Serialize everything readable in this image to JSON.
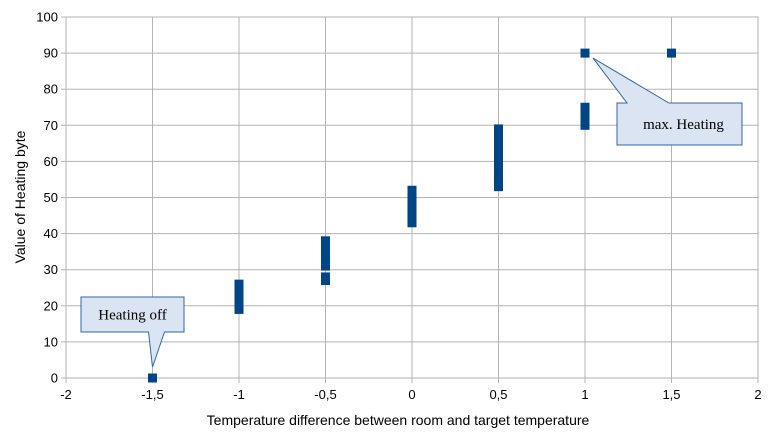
{
  "chart_data": {
    "type": "scatter",
    "xlabel": "Temperature difference between room and target temperature",
    "ylabel": "Value of Heating byte",
    "xlim": [
      -2,
      2
    ],
    "ylim": [
      0,
      100
    ],
    "xticks": [
      -2,
      -1.5,
      -1,
      -0.5,
      0,
      0.5,
      1,
      1.5,
      2
    ],
    "xtick_labels": [
      "-2",
      "-1,5",
      "-1",
      "-0,5",
      "0",
      "0,5",
      "1",
      "1,5",
      "2"
    ],
    "yticks": [
      0,
      10,
      20,
      30,
      40,
      50,
      60,
      70,
      80,
      90,
      100
    ],
    "ytick_labels": [
      "0",
      "10",
      "20",
      "30",
      "40",
      "50",
      "60",
      "70",
      "80",
      "90",
      "100"
    ],
    "grid": true,
    "legend": "none",
    "marker_color": "#004586",
    "callout_fill": "#dbe4f2",
    "callout_border": "#3465a4",
    "points": [
      {
        "x": -1.5,
        "y": 0
      },
      {
        "x": -1,
        "y": 19
      },
      {
        "x": -1,
        "y": 20
      },
      {
        "x": -1,
        "y": 21
      },
      {
        "x": -1,
        "y": 22
      },
      {
        "x": -1,
        "y": 23
      },
      {
        "x": -1,
        "y": 24
      },
      {
        "x": -1,
        "y": 25
      },
      {
        "x": -1,
        "y": 26
      },
      {
        "x": -0.5,
        "y": 27
      },
      {
        "x": -0.5,
        "y": 28
      },
      {
        "x": -0.5,
        "y": 31
      },
      {
        "x": -0.5,
        "y": 32
      },
      {
        "x": -0.5,
        "y": 33
      },
      {
        "x": -0.5,
        "y": 34
      },
      {
        "x": -0.5,
        "y": 35
      },
      {
        "x": -0.5,
        "y": 36
      },
      {
        "x": -0.5,
        "y": 37
      },
      {
        "x": -0.5,
        "y": 38
      },
      {
        "x": 0,
        "y": 43
      },
      {
        "x": 0,
        "y": 44
      },
      {
        "x": 0,
        "y": 45
      },
      {
        "x": 0,
        "y": 46
      },
      {
        "x": 0,
        "y": 47
      },
      {
        "x": 0,
        "y": 48
      },
      {
        "x": 0,
        "y": 49
      },
      {
        "x": 0,
        "y": 50
      },
      {
        "x": 0,
        "y": 51
      },
      {
        "x": 0,
        "y": 52
      },
      {
        "x": 0.5,
        "y": 53
      },
      {
        "x": 0.5,
        "y": 54
      },
      {
        "x": 0.5,
        "y": 55
      },
      {
        "x": 0.5,
        "y": 56
      },
      {
        "x": 0.5,
        "y": 57
      },
      {
        "x": 0.5,
        "y": 58
      },
      {
        "x": 0.5,
        "y": 59
      },
      {
        "x": 0.5,
        "y": 60
      },
      {
        "x": 0.5,
        "y": 61
      },
      {
        "x": 0.5,
        "y": 62
      },
      {
        "x": 0.5,
        "y": 63
      },
      {
        "x": 0.5,
        "y": 64
      },
      {
        "x": 0.5,
        "y": 65
      },
      {
        "x": 0.5,
        "y": 66
      },
      {
        "x": 0.5,
        "y": 67
      },
      {
        "x": 0.5,
        "y": 68
      },
      {
        "x": 0.5,
        "y": 69
      },
      {
        "x": 1,
        "y": 70
      },
      {
        "x": 1,
        "y": 71
      },
      {
        "x": 1,
        "y": 72
      },
      {
        "x": 1,
        "y": 73
      },
      {
        "x": 1,
        "y": 74
      },
      {
        "x": 1,
        "y": 75
      },
      {
        "x": 1,
        "y": 90
      },
      {
        "x": 1.5,
        "y": 90
      }
    ],
    "annotations": [
      {
        "text": "Heating off",
        "x": -1.5,
        "y": 0
      },
      {
        "text": "max. Heating",
        "x": 1,
        "y": 90
      }
    ]
  }
}
